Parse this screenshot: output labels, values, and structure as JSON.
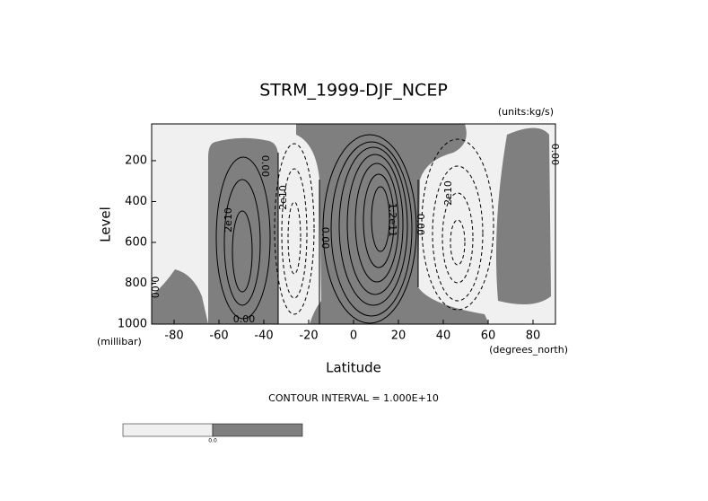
{
  "chart_data": {
    "type": "contour",
    "title": "STRM_1999-DJF_NCEP",
    "units": "(units:kg/s)",
    "x_label": "Latitude",
    "y_label": "Level",
    "x_units": "(degrees_north)",
    "y_units": "(millibar)",
    "footnote": "CONTOUR INTERVAL = 1.000E+10",
    "xlim": [
      -90,
      90
    ],
    "xticks": [
      -80,
      -60,
      -40,
      -20,
      0,
      20,
      40,
      60,
      80
    ],
    "ylim": [
      1000,
      20
    ],
    "yticks": [
      200,
      400,
      600,
      800,
      1000
    ],
    "contour_labels": [
      "0.00",
      "2e10",
      "2e10",
      "0.00",
      "1.2e11",
      "0.00",
      "2e10",
      "0.00",
      "0.00",
      "0.00"
    ],
    "colorbar_labels": [
      "0.0"
    ],
    "colors": [
      "#f0f0f0",
      "#7f7f7f"
    ]
  }
}
